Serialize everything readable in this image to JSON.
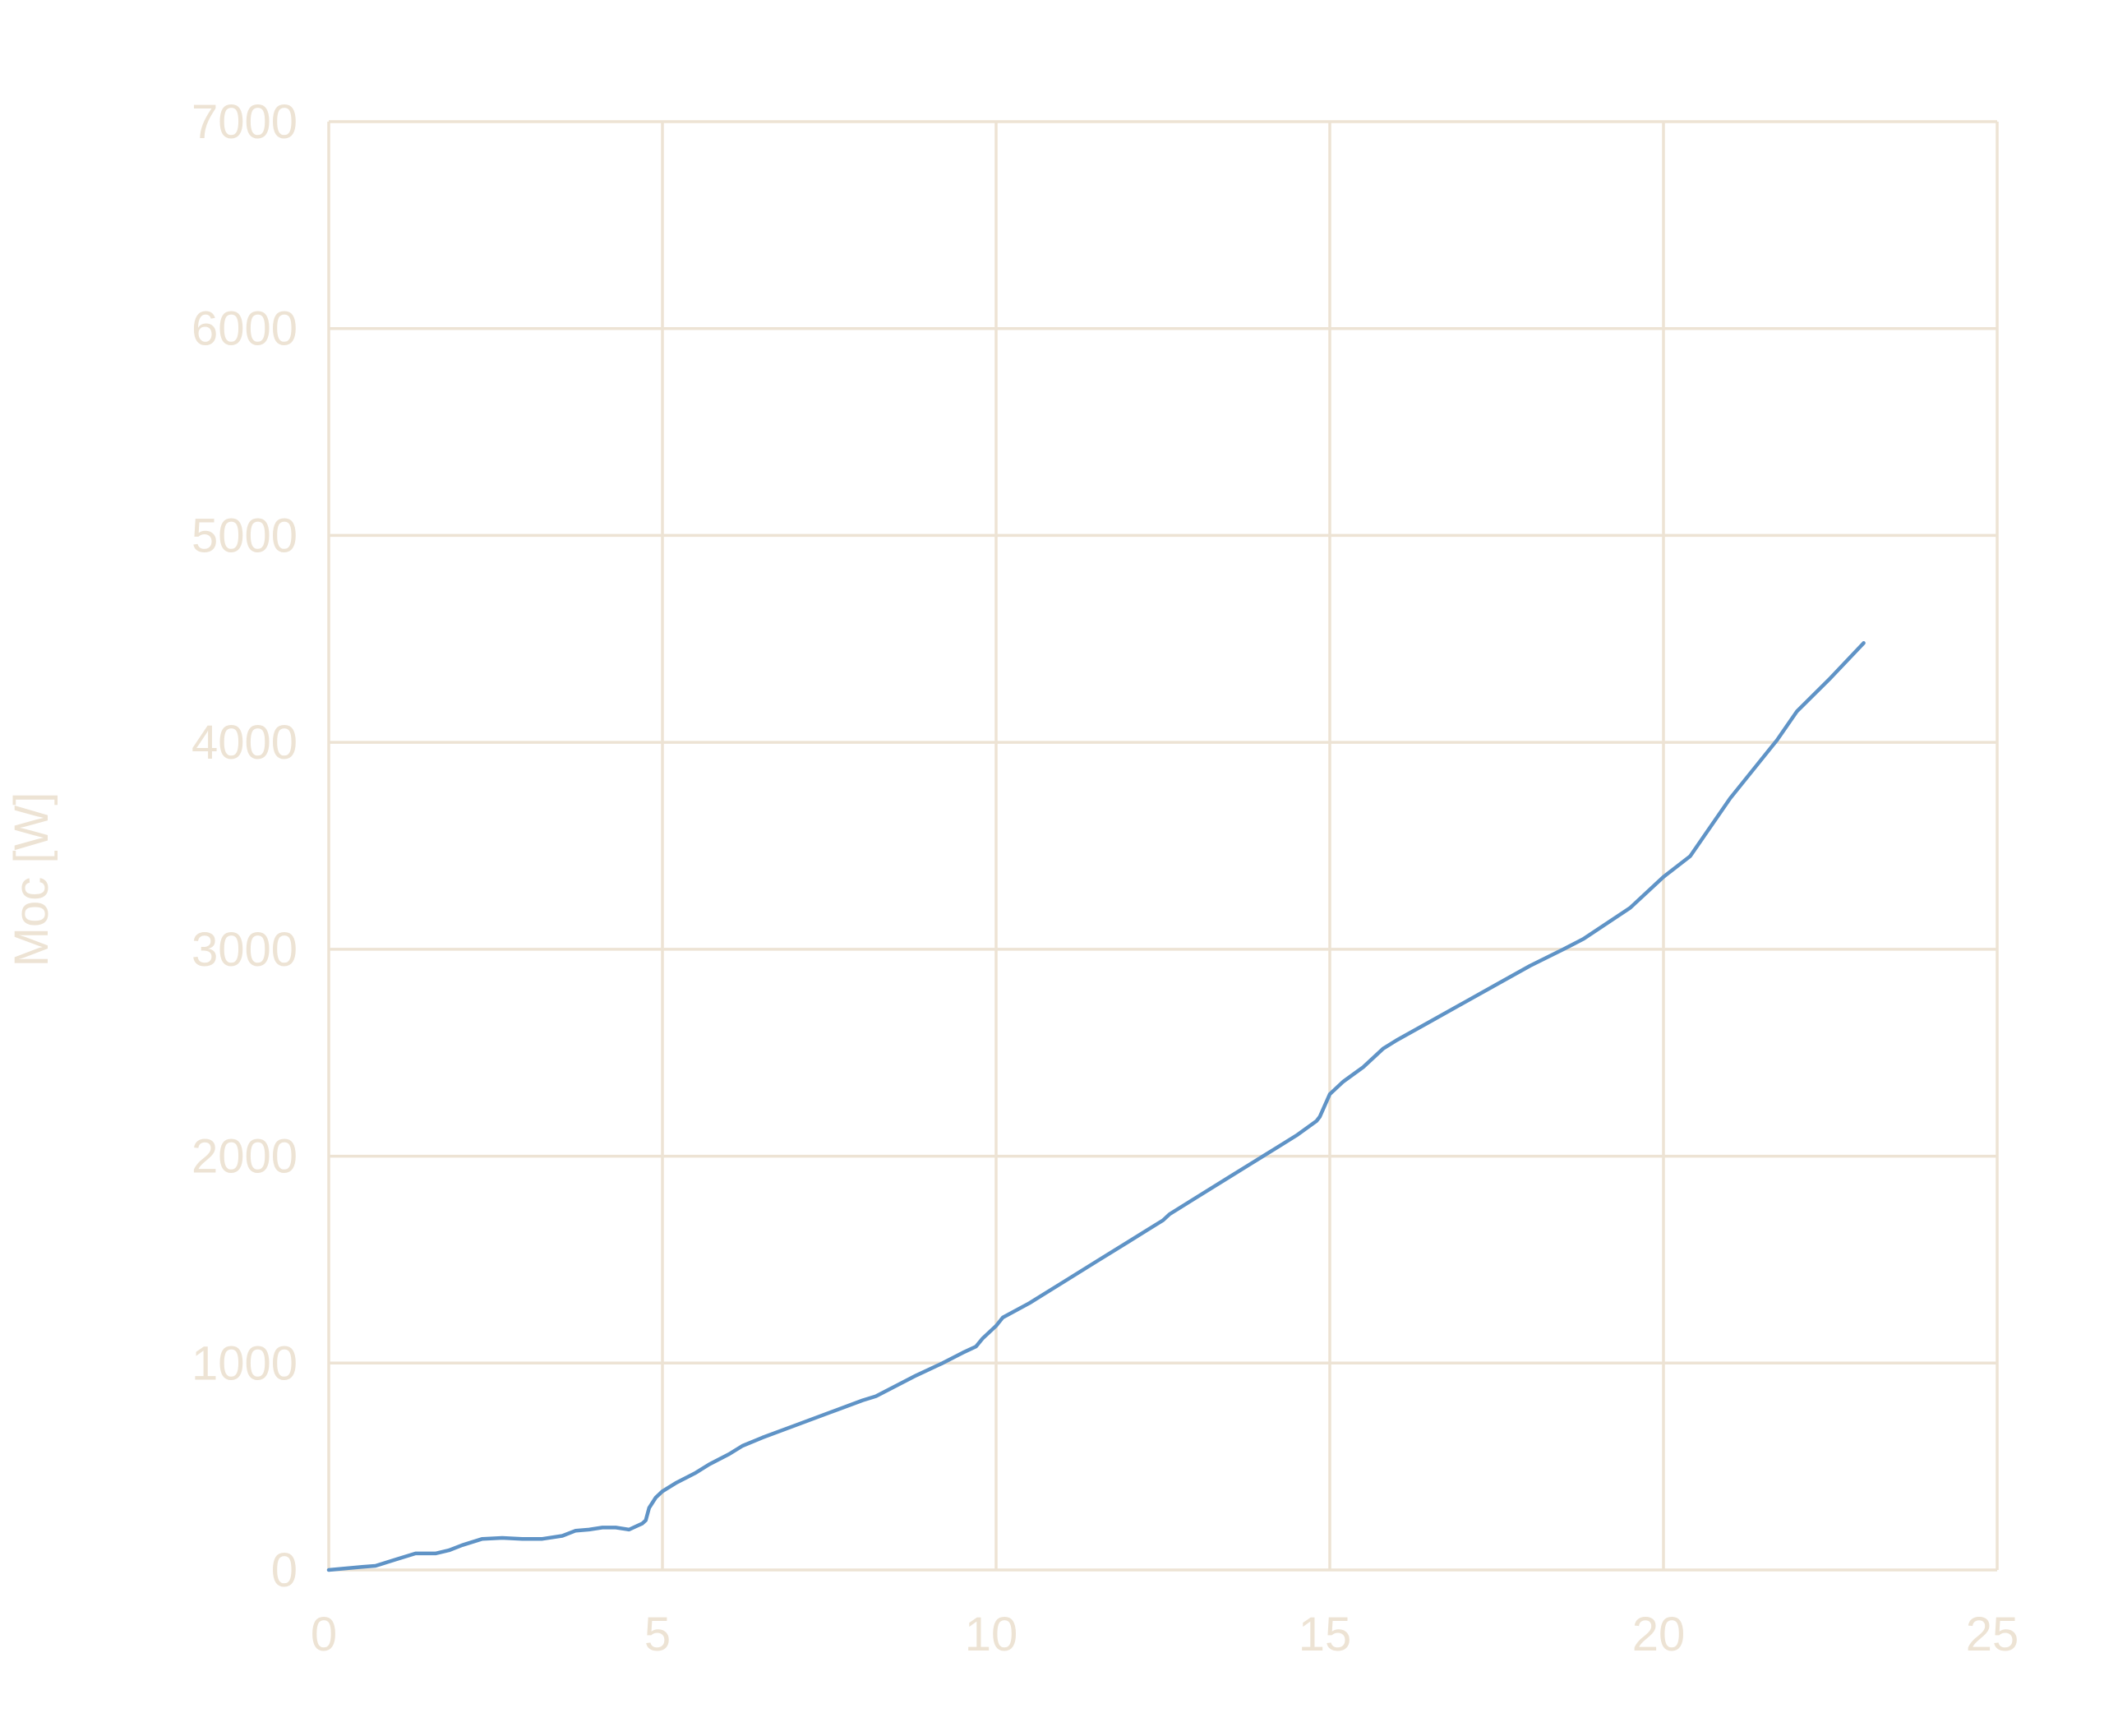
{
  "chart_data": {
    "type": "line",
    "title": "",
    "xlabel": "",
    "ylabel": "Moc [W]",
    "xlim": [
      0,
      25
    ],
    "ylim": [
      0,
      7000
    ],
    "x_ticks": [
      "0",
      "5",
      "10",
      "15",
      "20",
      "25"
    ],
    "y_ticks": [
      "0",
      "1000",
      "2000",
      "3000",
      "4000",
      "5000",
      "6000",
      "7000"
    ],
    "grid": true,
    "legend": "none",
    "series": [
      {
        "color": "#5f93c6",
        "x": [
          0,
          0.5,
          0.7,
          1.0,
          1.3,
          1.6,
          1.8,
          2.0,
          2.3,
          2.6,
          2.9,
          3.2,
          3.5,
          3.7,
          3.9,
          4.1,
          4.3,
          4.5,
          4.6,
          4.7,
          4.75,
          4.8,
          4.9,
          5.0,
          5.2,
          5.5,
          5.7,
          6.0,
          6.2,
          6.5,
          7.0,
          7.5,
          8.0,
          8.2,
          8.5,
          8.8,
          9.2,
          9.5,
          9.7,
          9.8,
          10.0,
          10.1,
          10.5,
          11.0,
          11.5,
          12.0,
          12.5,
          12.6,
          13.0,
          13.5,
          14.0,
          14.5,
          14.8,
          14.85,
          15.0,
          15.2,
          15.5,
          15.8,
          16.0,
          16.5,
          17.0,
          17.5,
          18.0,
          18.5,
          18.8,
          19.5,
          20.0,
          20.4,
          21.0,
          21.7,
          22.0,
          22.5,
          23.0
        ],
        "y": [
          0,
          15,
          20,
          50,
          80,
          80,
          95,
          120,
          150,
          155,
          150,
          150,
          165,
          190,
          195,
          205,
          205,
          195,
          210,
          225,
          240,
          300,
          350,
          380,
          420,
          470,
          510,
          560,
          600,
          640,
          700,
          760,
          820,
          840,
          890,
          940,
          1000,
          1050,
          1080,
          1120,
          1180,
          1220,
          1290,
          1390,
          1490,
          1590,
          1690,
          1720,
          1800,
          1900,
          2000,
          2100,
          2170,
          2190,
          2300,
          2360,
          2430,
          2520,
          2560,
          2650,
          2740,
          2830,
          2920,
          3000,
          3050,
          3200,
          3350,
          3450,
          3730,
          4010,
          4150,
          4310,
          4480
        ]
      }
    ]
  }
}
